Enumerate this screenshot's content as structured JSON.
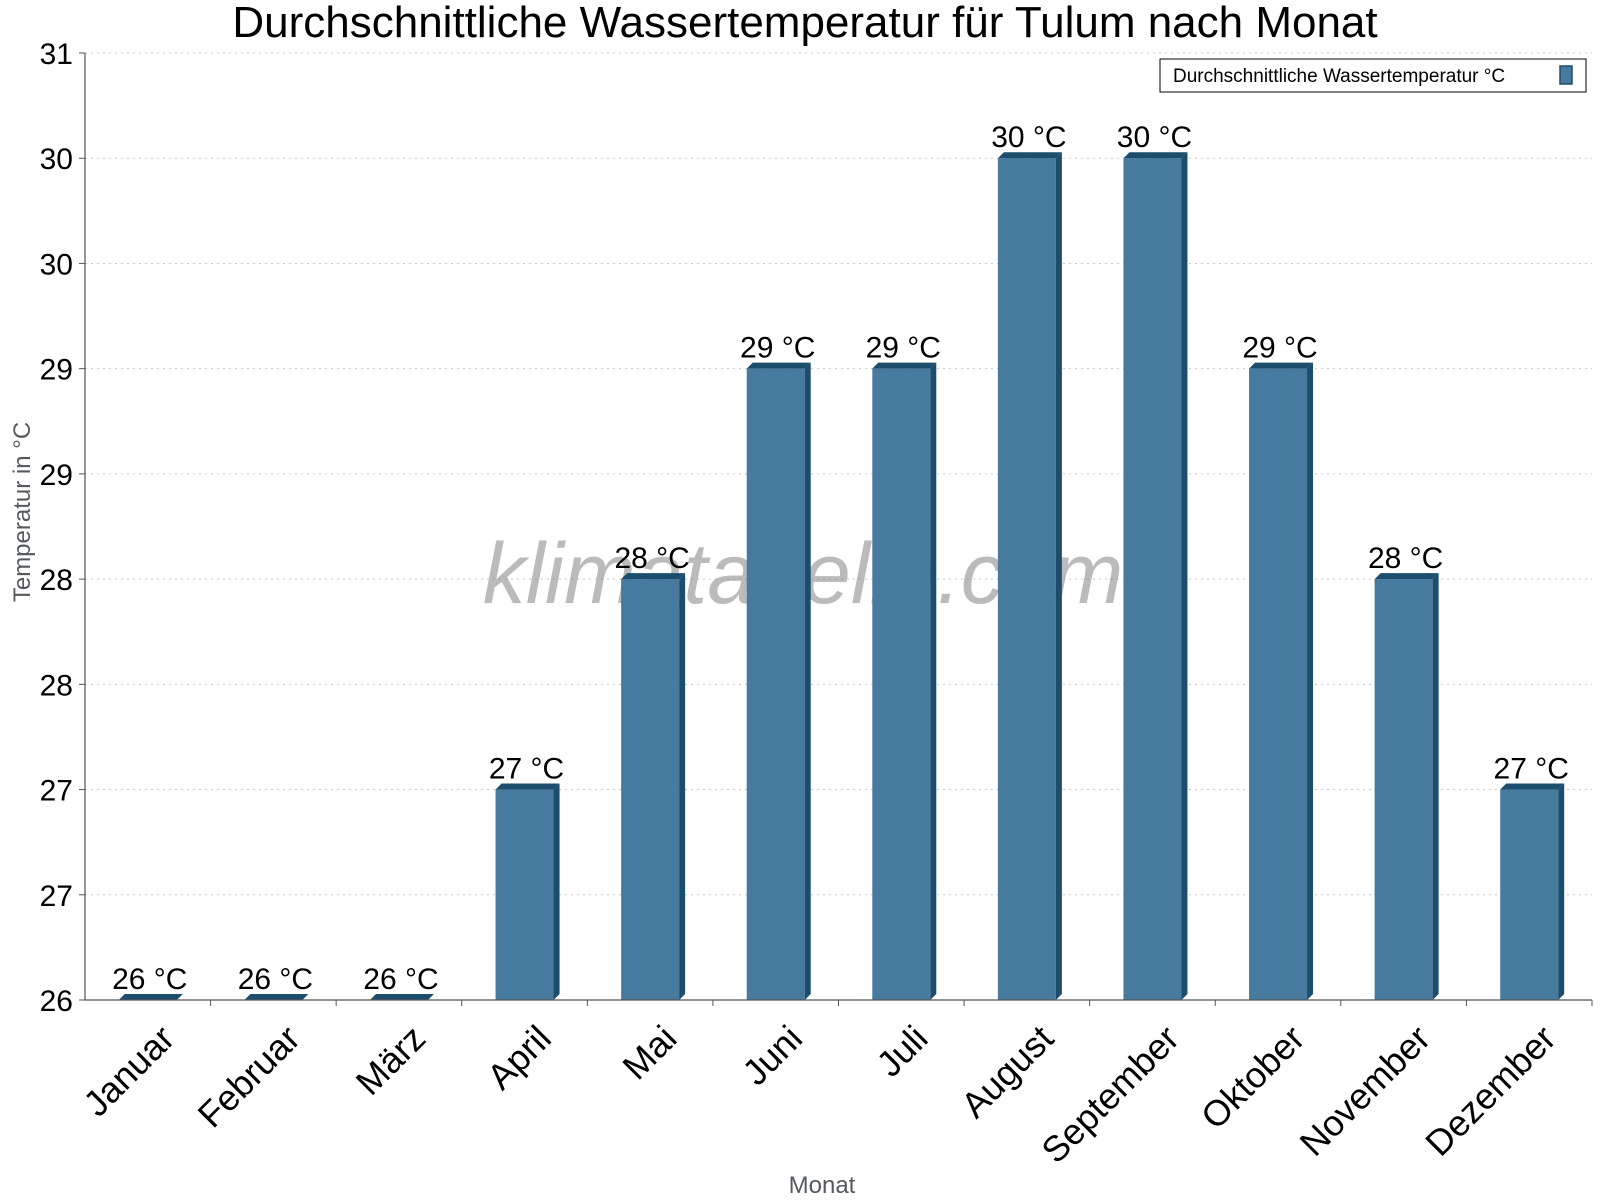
{
  "watermark": "klimatabelle.com",
  "chart_data": {
    "type": "bar",
    "title": "Durchschnittliche Wassertemperatur für Tulum nach Monat",
    "xlabel": "Monat",
    "ylabel": "Temperatur in °C",
    "categories": [
      "Januar",
      "Februar",
      "März",
      "April",
      "Mai",
      "Juni",
      "Juli",
      "August",
      "September",
      "Oktober",
      "November",
      "Dezember"
    ],
    "series": [
      {
        "name": "Durchschnittliche Wassertemperatur °C",
        "values": [
          26.0,
          26.0,
          26.0,
          27.0,
          28.0,
          29.0,
          29.0,
          30.0,
          30.0,
          29.0,
          28.0,
          27.0
        ],
        "labels": [
          "26 °C",
          "26 °C",
          "26 °C",
          "27 °C",
          "28 °C",
          "29 °C",
          "29 °C",
          "30 °C",
          "30 °C",
          "29 °C",
          "28 °C",
          "27 °C"
        ],
        "color": "#467a9e",
        "edge_color": "#1d4d6c"
      }
    ],
    "ylim": [
      26,
      30.5
    ],
    "yticks": [
      26,
      26.5,
      27,
      27.5,
      28,
      28.5,
      29,
      29.5,
      30,
      30.5
    ],
    "ytick_labels": [
      "26",
      "27",
      "27",
      "28",
      "28",
      "29",
      "29",
      "30",
      "30",
      "31"
    ],
    "grid": true,
    "legend": "top-right"
  }
}
